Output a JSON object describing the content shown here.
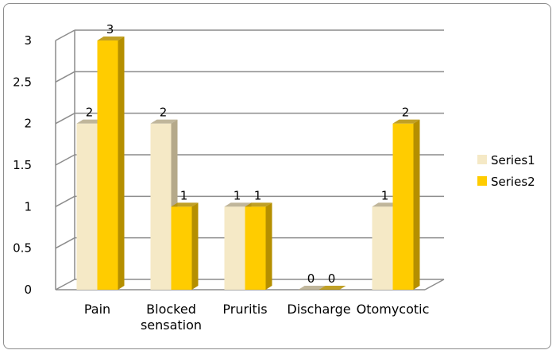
{
  "chart_data": {
    "type": "bar",
    "style": "3d-clustered-column",
    "categories": [
      "Pain",
      "Blocked sensation",
      "Pruritis",
      "Discharge",
      "Otomycotic"
    ],
    "category_label_lines": [
      [
        "Pain"
      ],
      [
        "Blocked",
        "sensation"
      ],
      [
        "Pruritis"
      ],
      [
        "Discharge"
      ],
      [
        "Otomycotic"
      ]
    ],
    "series": [
      {
        "name": "Series1",
        "values": [
          2,
          2,
          1,
          0,
          1
        ],
        "color": "#F5E9C6",
        "side_color": "#B5A98A"
      },
      {
        "name": "Series2",
        "values": [
          3,
          1,
          1,
          0,
          2
        ],
        "color": "#FFCC00",
        "side_color": "#B58F00"
      }
    ],
    "y_ticks": [
      "0",
      "0.5",
      "1",
      "1.5",
      "2",
      "2.5",
      "3"
    ],
    "ylim": [
      0,
      3
    ],
    "grid": true,
    "legend_position": "right",
    "data_labels": true
  }
}
